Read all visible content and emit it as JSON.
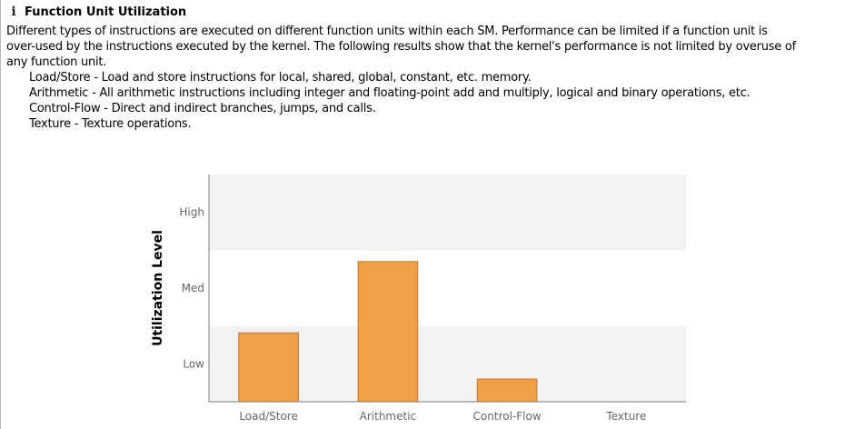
{
  "header": {
    "icon": "info-icon",
    "title": "Function Unit Utilization"
  },
  "description": {
    "lines": [
      "Different types of instructions are executed on different function units within each SM. Performance can be limited if a function unit is",
      "over-used by the instructions executed by the kernel. The following results show that the kernel's performance is not limited by overuse of",
      "any function unit."
    ]
  },
  "definitions": [
    "Load/Store - Load and store instructions for local, shared, global, constant, etc. memory.",
    "Arithmetic - All arithmetic instructions including integer and floating-point add and multiply, logical and binary operations, etc.",
    "Control-Flow - Direct and indirect branches, jumps, and calls.",
    "Texture - Texture operations."
  ],
  "chart_data": {
    "type": "bar",
    "title": "",
    "xlabel": "",
    "ylabel": "Utilization Level",
    "categories": [
      "Load/Store",
      "Arithmetic",
      "Control-Flow",
      "Texture"
    ],
    "values": [
      0.91,
      1.85,
      0.3,
      0
    ],
    "ylim": [
      0,
      3
    ],
    "y_ticks": [
      {
        "label": "Low",
        "value": 0.5
      },
      {
        "label": "Med",
        "value": 1.5
      },
      {
        "label": "High",
        "value": 2.5
      }
    ],
    "bands": [
      {
        "from": 0,
        "to": 1,
        "color": "#f2f2f2"
      },
      {
        "from": 1,
        "to": 2,
        "color": "#ffffff"
      },
      {
        "from": 2,
        "to": 3,
        "color": "#f2f2f2"
      }
    ],
    "bar_color": "#f0a145",
    "bar_edge_color": "#c9762a",
    "grid": false,
    "legend": "none"
  }
}
